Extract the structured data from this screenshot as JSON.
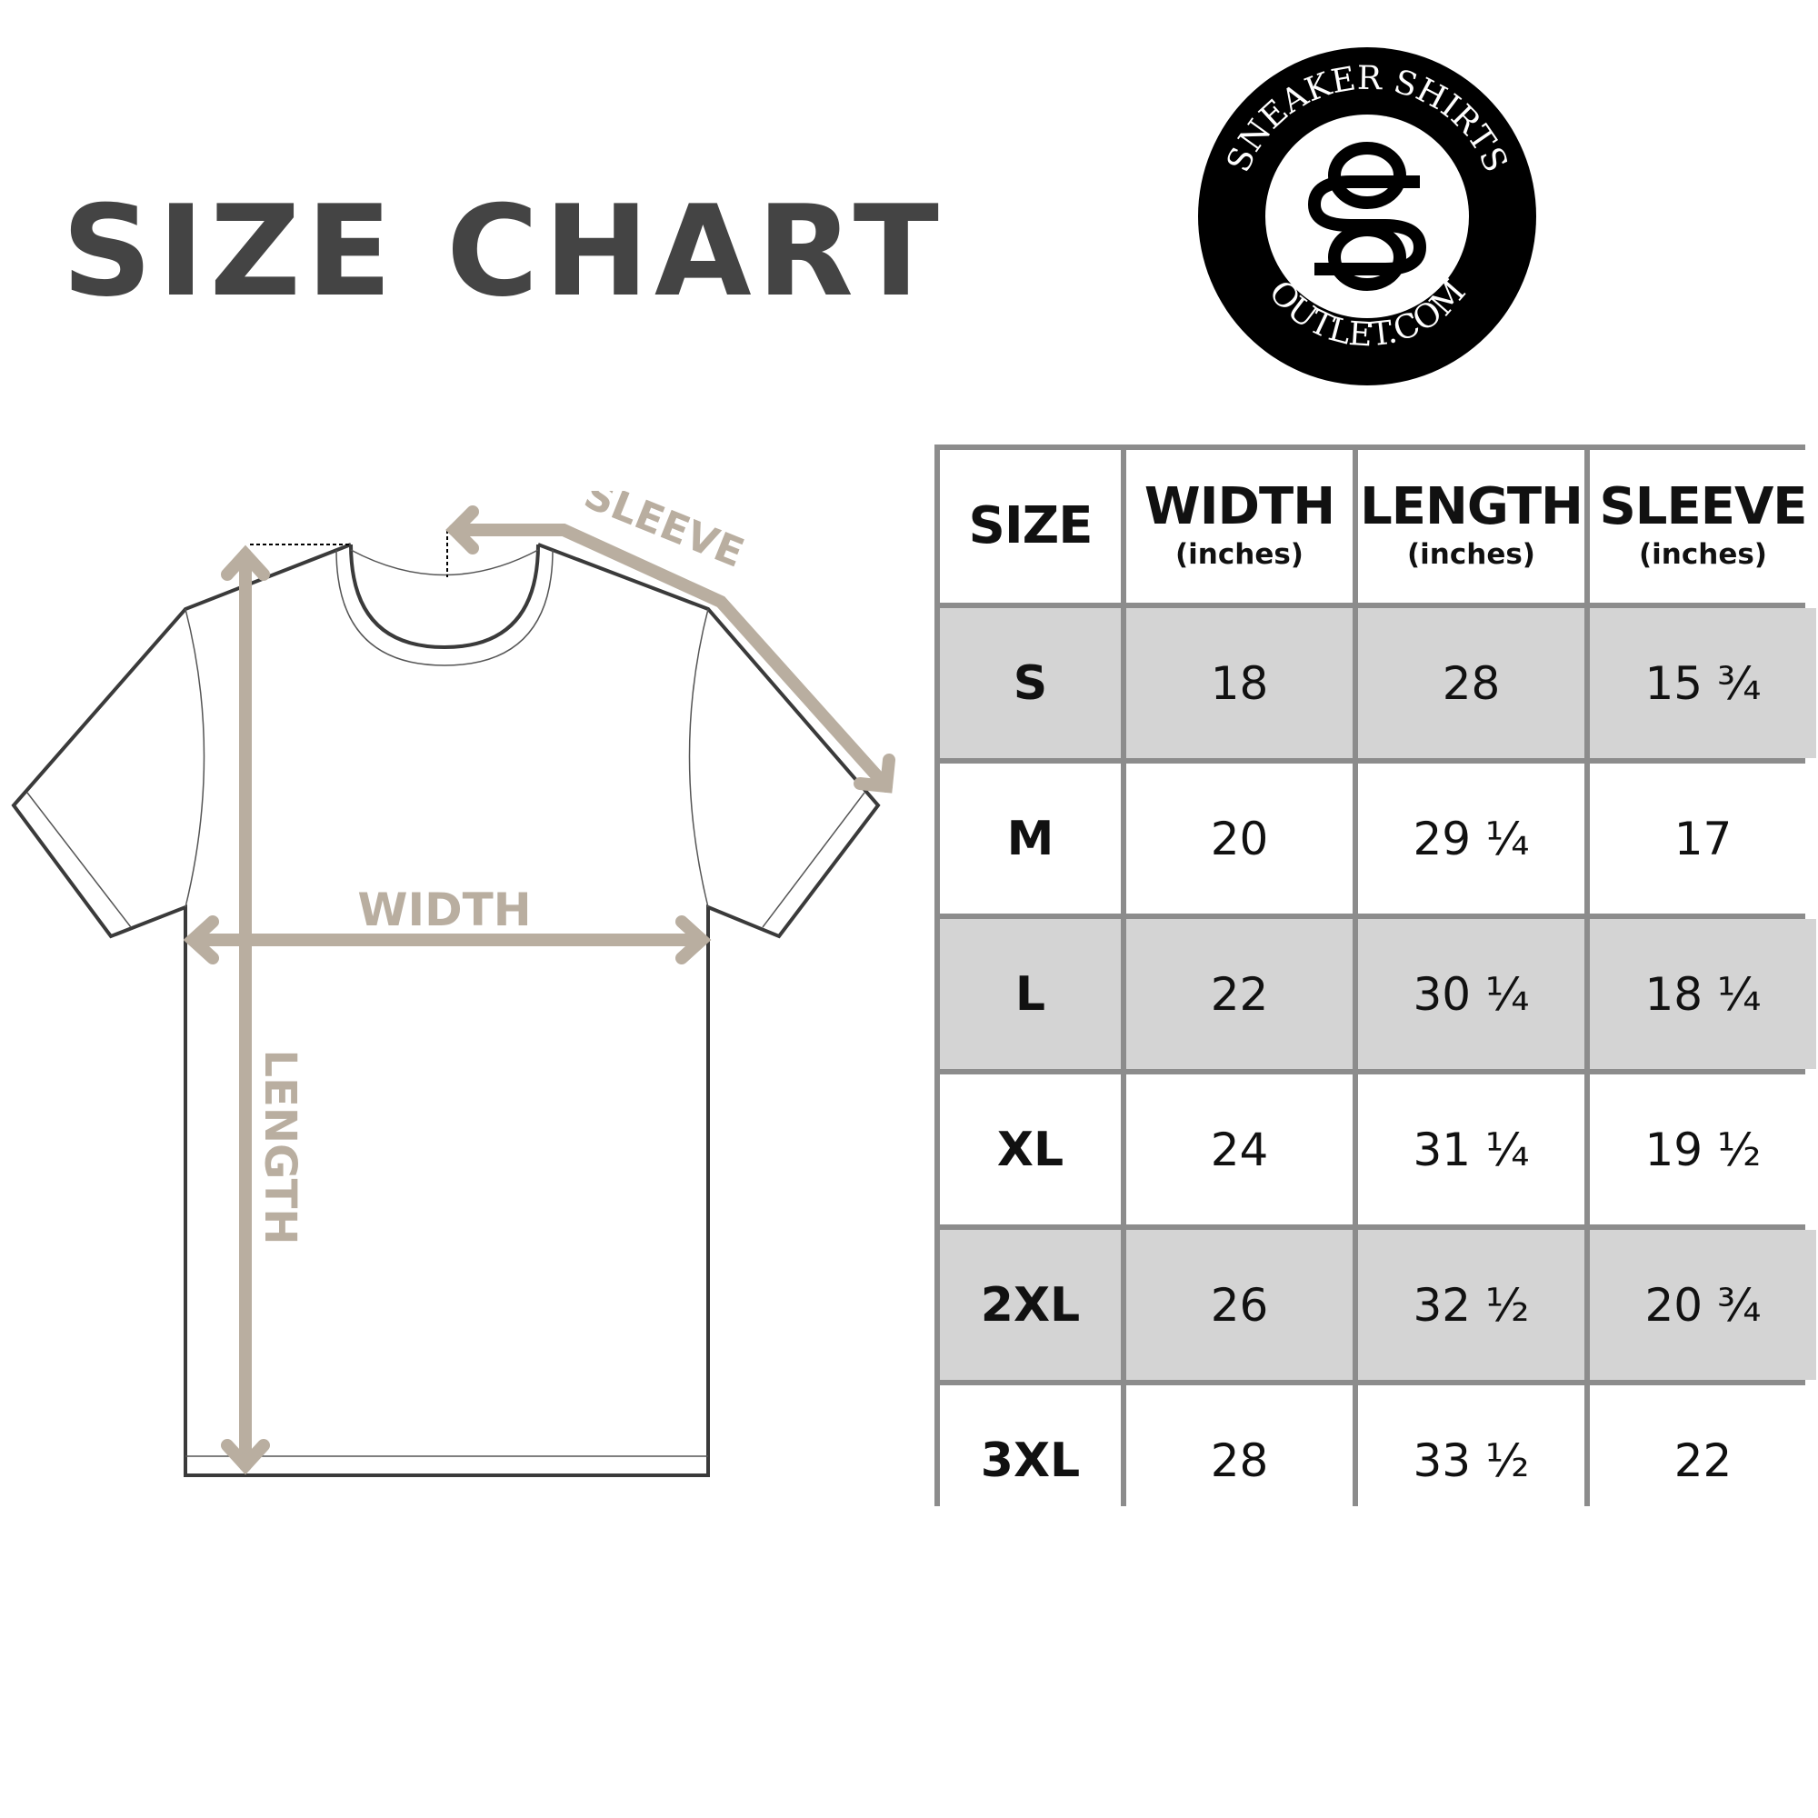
{
  "title": "SIZE CHART",
  "logo": {
    "top_text": "SNEAKER SHIRTS",
    "bottom_text": "OUTLET.COM",
    "monogram": "SO"
  },
  "diagram": {
    "sleeve_label": "SLEEVE",
    "width_label": "WIDTH",
    "length_label": "LENGTH",
    "accent_color": "#b9aea0"
  },
  "table": {
    "headers": [
      {
        "label": "SIZE",
        "unit": ""
      },
      {
        "label": "WIDTH",
        "unit": "(inches)"
      },
      {
        "label": "LENGTH",
        "unit": "(inches)"
      },
      {
        "label": "SLEEVE",
        "unit": "(inches)"
      }
    ],
    "rows": [
      [
        "S",
        "18",
        "28",
        "15 ¾"
      ],
      [
        "M",
        "20",
        "29 ¼",
        "17"
      ],
      [
        "L",
        "22",
        "30 ¼",
        "18 ¼"
      ],
      [
        "XL",
        "24",
        "31 ¼",
        "19 ½"
      ],
      [
        "2XL",
        "26",
        "32 ½",
        "20 ¾"
      ],
      [
        "3XL",
        "28",
        "33 ½",
        "22"
      ]
    ],
    "stripe_color": "#d4d4d4",
    "border_color": "#8c8c8c"
  }
}
